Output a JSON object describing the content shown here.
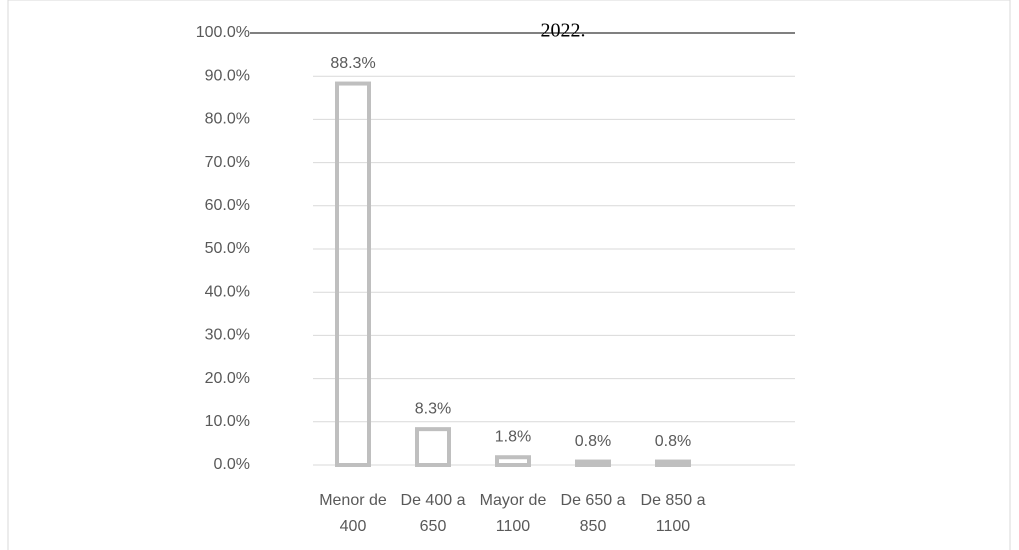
{
  "chart_data": {
    "type": "bar",
    "title": "2022.",
    "categories": [
      "Menor de 400",
      "De 400 a 650",
      "Mayor de 1100",
      "De 650 a 850",
      "De 850 a 1100"
    ],
    "values": [
      88.3,
      8.3,
      1.8,
      0.8,
      0.8
    ],
    "value_labels": [
      "88.3%",
      "8.3%",
      "1.8%",
      "0.8%",
      "0.8%"
    ],
    "color": "#bfbfbf",
    "ylim": [
      0,
      100
    ],
    "yticks": [
      {
        "value": 0,
        "label": "0.0%"
      },
      {
        "value": 10,
        "label": "10.0%"
      },
      {
        "value": 20,
        "label": "20.0%"
      },
      {
        "value": 30,
        "label": "30.0%"
      },
      {
        "value": 40,
        "label": "40.0%"
      },
      {
        "value": 50,
        "label": "50.0%"
      },
      {
        "value": 60,
        "label": "60.0%"
      },
      {
        "value": 70,
        "label": "70.0%"
      },
      {
        "value": 80,
        "label": "80.0%"
      },
      {
        "value": 90,
        "label": "90.0%"
      },
      {
        "value": 100,
        "label": "100.0%"
      }
    ],
    "grid": true
  }
}
